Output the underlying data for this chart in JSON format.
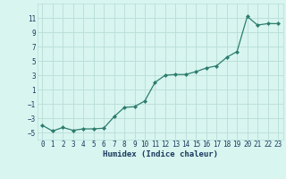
{
  "x": [
    0,
    1,
    2,
    3,
    4,
    5,
    6,
    7,
    8,
    9,
    10,
    11,
    12,
    13,
    14,
    15,
    16,
    17,
    18,
    19,
    20,
    21,
    22,
    23
  ],
  "y": [
    -4.0,
    -4.8,
    -4.3,
    -4.7,
    -4.5,
    -4.5,
    -4.4,
    -2.8,
    -1.5,
    -1.4,
    -0.6,
    2.0,
    3.0,
    3.1,
    3.1,
    3.5,
    4.0,
    4.3,
    5.5,
    6.3,
    11.2,
    10.0,
    10.2,
    10.2
  ],
  "xlabel": "Humidex (Indice chaleur)",
  "ylim": [
    -6,
    13
  ],
  "xlim": [
    -0.5,
    23.5
  ],
  "yticks": [
    -5,
    -3,
    -1,
    1,
    3,
    5,
    7,
    9,
    11
  ],
  "xticks": [
    0,
    1,
    2,
    3,
    4,
    5,
    6,
    7,
    8,
    9,
    10,
    11,
    12,
    13,
    14,
    15,
    16,
    17,
    18,
    19,
    20,
    21,
    22,
    23
  ],
  "line_color": "#2d7d6e",
  "marker_color": "#2d7d6e",
  "bg_color": "#d8f5f0",
  "grid_color": "#b8ddd8",
  "text_color": "#1a3a5c",
  "label_fontsize": 6.5,
  "tick_fontsize": 5.5
}
